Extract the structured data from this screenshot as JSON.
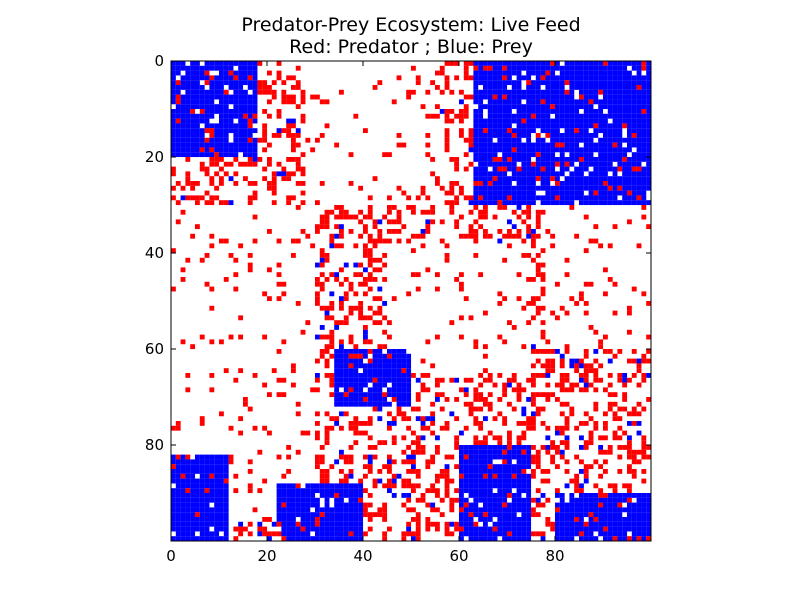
{
  "chart_data": {
    "type": "heatmap",
    "title": "Predator-Prey Ecosystem: Live Feed",
    "subtitle": "Red: Predator ; Blue: Prey",
    "xlabel": "",
    "ylabel": "",
    "xlim": [
      0,
      100
    ],
    "ylim": [
      100,
      0
    ],
    "x_ticks": [
      "0",
      "20",
      "40",
      "60",
      "80"
    ],
    "y_ticks": [
      "0",
      "20",
      "40",
      "60",
      "80"
    ],
    "x_tick_values": [
      0,
      20,
      40,
      60,
      80
    ],
    "y_tick_values": [
      0,
      20,
      40,
      60,
      80
    ],
    "grid": false,
    "grid_size": [
      100,
      100
    ],
    "categories": [
      "empty",
      "predator",
      "prey"
    ],
    "colors": {
      "empty": "#ffffff",
      "predator": "#ff0000",
      "prey": "#0000ff"
    },
    "prey_regions": [
      {
        "row_range": [
          0,
          20
        ],
        "col_range": [
          0,
          18
        ]
      },
      {
        "row_range": [
          0,
          30
        ],
        "col_range": [
          63,
          100
        ]
      },
      {
        "row_range": [
          82,
          100
        ],
        "col_range": [
          0,
          12
        ]
      },
      {
        "row_range": [
          88,
          100
        ],
        "col_range": [
          22,
          40
        ]
      },
      {
        "row_range": [
          80,
          100
        ],
        "col_range": [
          60,
          75
        ]
      },
      {
        "row_range": [
          90,
          100
        ],
        "col_range": [
          80,
          100
        ]
      },
      {
        "row_range": [
          60,
          72
        ],
        "col_range": [
          34,
          50
        ]
      }
    ],
    "empty_regions": [
      {
        "row_range": [
          0,
          30
        ],
        "col_range": [
          28,
          56
        ]
      },
      {
        "row_range": [
          30,
          95
        ],
        "col_range": [
          0,
          30
        ]
      },
      {
        "row_range": [
          38,
          65
        ],
        "col_range": [
          45,
          75
        ]
      },
      {
        "row_range": [
          30,
          60
        ],
        "col_range": [
          78,
          100
        ]
      }
    ],
    "predator_density": 0.3
  }
}
